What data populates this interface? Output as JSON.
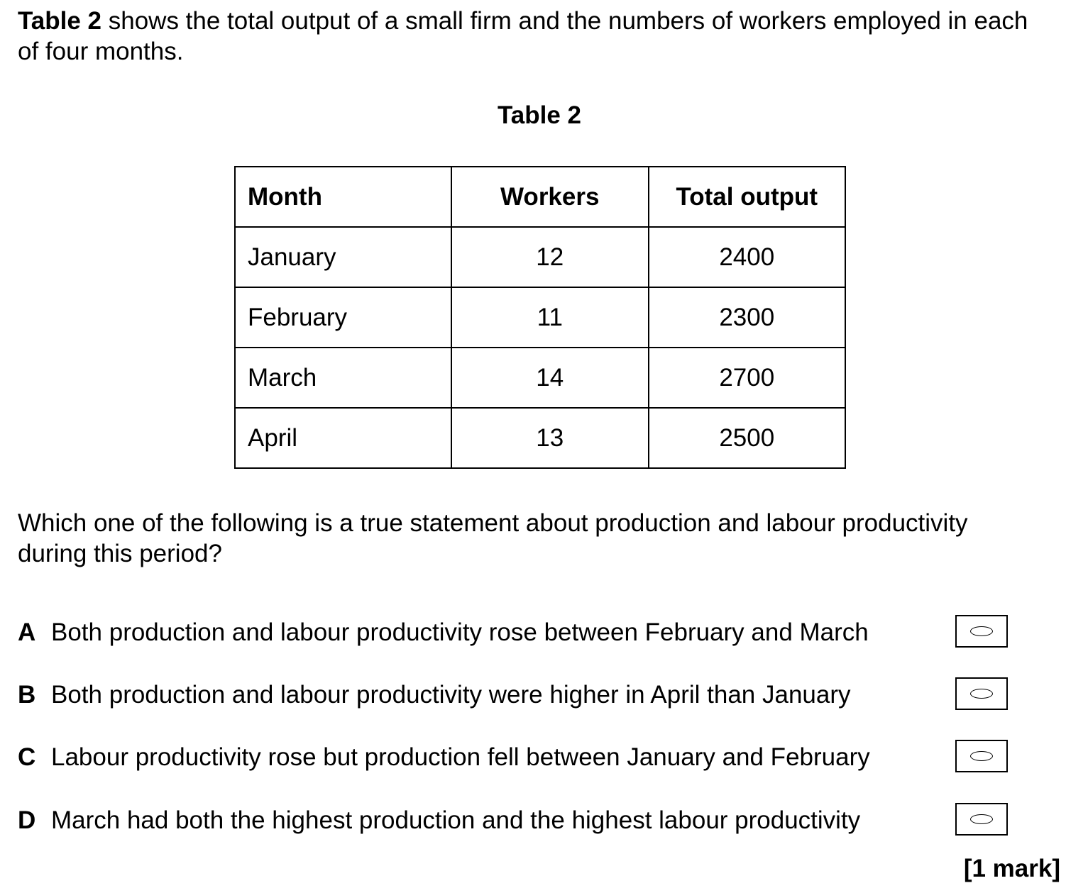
{
  "intro": {
    "bold_lead": "Table 2",
    "text": " shows the total output of a small firm and the numbers of workers employed in each of four months."
  },
  "table": {
    "caption": "Table 2",
    "headers": [
      "Month",
      "Workers",
      "Total output"
    ],
    "rows": [
      [
        "January",
        "12",
        "2400"
      ],
      [
        "February",
        "11",
        "2300"
      ],
      [
        "March",
        "14",
        "2700"
      ],
      [
        "April",
        "13",
        "2500"
      ]
    ]
  },
  "question": "Which one of the following is a true statement about production and labour productivity during this period?",
  "options": [
    {
      "letter": "A",
      "text": "Both production and labour productivity rose between February and March"
    },
    {
      "letter": "B",
      "text": "Both production and labour productivity were higher in April than January"
    },
    {
      "letter": "C",
      "text": "Labour productivity rose but production fell between January and February"
    },
    {
      "letter": "D",
      "text": "March had both the highest production and the highest labour productivity"
    }
  ],
  "marks": "[1 mark]"
}
